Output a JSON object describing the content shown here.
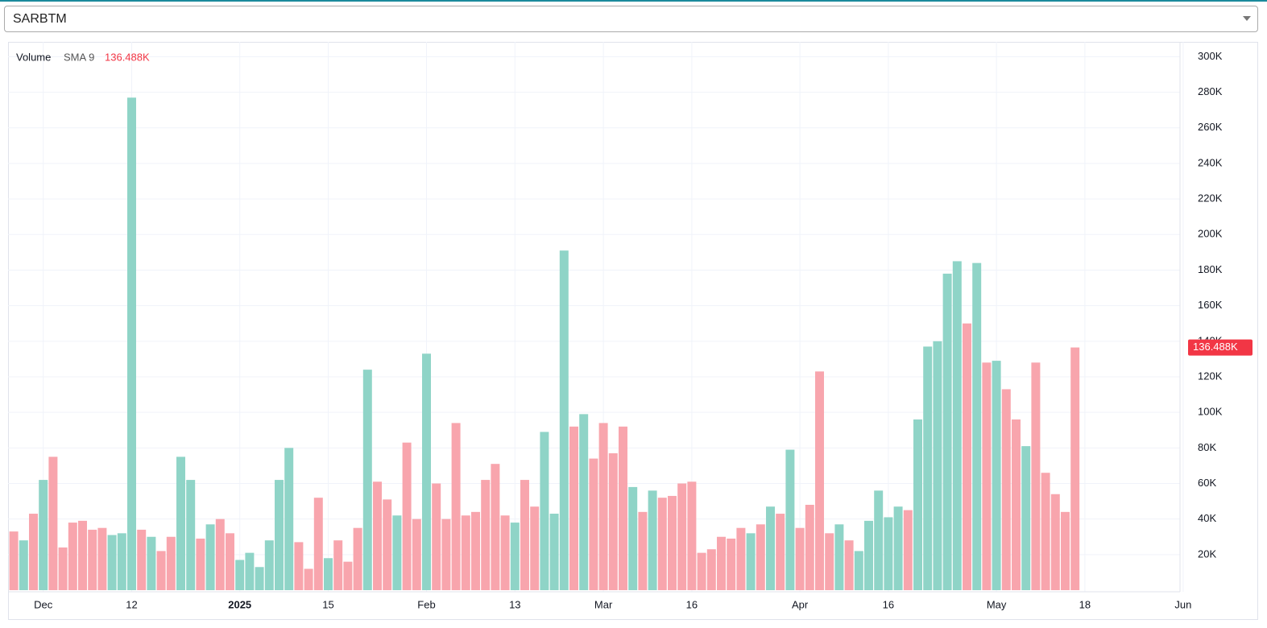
{
  "dropdown": {
    "value": "SARBTM"
  },
  "chart_data": {
    "type": "bar",
    "legend": {
      "name": "Volume",
      "indicator": "SMA 9",
      "value_label": "136.488K"
    },
    "categories": [
      null,
      null,
      null,
      "Dec",
      null,
      null,
      null,
      null,
      null,
      null,
      null,
      null,
      "12",
      null,
      null,
      null,
      null,
      null,
      null,
      null,
      null,
      null,
      null,
      "2025",
      null,
      null,
      null,
      null,
      null,
      null,
      null,
      null,
      "15",
      null,
      null,
      null,
      null,
      null,
      null,
      null,
      null,
      null,
      "Feb",
      null,
      null,
      null,
      null,
      null,
      null,
      null,
      null,
      "13",
      null,
      null,
      null,
      null,
      null,
      null,
      null,
      null,
      "Mar",
      null,
      null,
      null,
      null,
      null,
      null,
      null,
      null,
      "16",
      null,
      null,
      null,
      null,
      null,
      null,
      null,
      null,
      null,
      null,
      "Apr",
      null,
      null,
      null,
      null,
      null,
      null,
      null,
      null,
      "16",
      null,
      null,
      null,
      null,
      null,
      null,
      null,
      null,
      null,
      null,
      "May",
      null,
      null,
      null,
      null,
      null,
      null,
      null,
      null,
      "18",
      null,
      null,
      null,
      null,
      null,
      null,
      null,
      null,
      null,
      "Jun"
    ],
    "values": [
      33000,
      28000,
      43000,
      62000,
      75000,
      24000,
      38000,
      39000,
      34000,
      35000,
      31000,
      32000,
      277000,
      34000,
      30000,
      22000,
      30000,
      75000,
      62000,
      29000,
      37000,
      40000,
      32000,
      17000,
      21000,
      13000,
      28000,
      62000,
      80000,
      27000,
      12000,
      52000,
      18000,
      28000,
      16000,
      35000,
      124000,
      61000,
      51000,
      42000,
      83000,
      40000,
      133000,
      60000,
      40000,
      94000,
      42000,
      44000,
      62000,
      71000,
      42000,
      38000,
      62000,
      47000,
      89000,
      43000,
      191000,
      92000,
      99000,
      74000,
      94000,
      77000,
      92000,
      58000,
      44000,
      56000,
      52000,
      53000,
      60000,
      61000,
      21000,
      23000,
      30000,
      29000,
      35000,
      32000,
      37000,
      47000,
      43000,
      79000,
      35000,
      48000,
      123000,
      32000,
      37000,
      28000,
      22000,
      39000,
      56000,
      41000,
      47000,
      45000,
      96000,
      137000,
      140000,
      178000,
      185000,
      150000,
      184000,
      128000,
      129000,
      113000,
      96000,
      81000,
      128000,
      66000,
      54000,
      44000,
      136488,
      null,
      null,
      null,
      null,
      null,
      null,
      null,
      null,
      null,
      null,
      null
    ],
    "colors": [
      "#f8a5ad",
      "#8fd4c7",
      "#f8a5ad",
      "#8fd4c7",
      "#f8a5ad",
      "#f8a5ad",
      "#f8a5ad",
      "#f8a5ad",
      "#f8a5ad",
      "#f8a5ad",
      "#8fd4c7",
      "#8fd4c7",
      "#8fd4c7",
      "#f8a5ad",
      "#8fd4c7",
      "#f8a5ad",
      "#f8a5ad",
      "#8fd4c7",
      "#8fd4c7",
      "#f8a5ad",
      "#8fd4c7",
      "#f8a5ad",
      "#f8a5ad",
      "#8fd4c7",
      "#8fd4c7",
      "#8fd4c7",
      "#8fd4c7",
      "#8fd4c7",
      "#8fd4c7",
      "#f8a5ad",
      "#f8a5ad",
      "#f8a5ad",
      "#8fd4c7",
      "#f8a5ad",
      "#f8a5ad",
      "#f8a5ad",
      "#8fd4c7",
      "#f8a5ad",
      "#f8a5ad",
      "#8fd4c7",
      "#f8a5ad",
      "#f8a5ad",
      "#8fd4c7",
      "#f8a5ad",
      "#f8a5ad",
      "#f8a5ad",
      "#f8a5ad",
      "#f8a5ad",
      "#f8a5ad",
      "#f8a5ad",
      "#f8a5ad",
      "#8fd4c7",
      "#f8a5ad",
      "#f8a5ad",
      "#8fd4c7",
      "#8fd4c7",
      "#8fd4c7",
      "#f8a5ad",
      "#8fd4c7",
      "#f8a5ad",
      "#f8a5ad",
      "#f8a5ad",
      "#f8a5ad",
      "#8fd4c7",
      "#f8a5ad",
      "#8fd4c7",
      "#f8a5ad",
      "#f8a5ad",
      "#f8a5ad",
      "#f8a5ad",
      "#f8a5ad",
      "#f8a5ad",
      "#f8a5ad",
      "#f8a5ad",
      "#f8a5ad",
      "#8fd4c7",
      "#f8a5ad",
      "#8fd4c7",
      "#f8a5ad",
      "#8fd4c7",
      "#f8a5ad",
      "#f8a5ad",
      "#f8a5ad",
      "#f8a5ad",
      "#8fd4c7",
      "#f8a5ad",
      "#8fd4c7",
      "#8fd4c7",
      "#8fd4c7",
      "#8fd4c7",
      "#8fd4c7",
      "#f8a5ad",
      "#8fd4c7",
      "#8fd4c7",
      "#8fd4c7",
      "#8fd4c7",
      "#8fd4c7",
      "#f8a5ad",
      "#8fd4c7",
      "#f8a5ad",
      "#8fd4c7",
      "#f8a5ad",
      "#f8a5ad",
      "#8fd4c7",
      "#f8a5ad",
      "#f8a5ad",
      "#f8a5ad",
      "#f8a5ad",
      "#f8a5ad",
      null,
      null,
      null,
      null,
      null,
      null,
      null,
      null,
      null,
      null,
      null
    ],
    "last_color": "#f23645",
    "ylim": [
      0,
      307000
    ],
    "yticks": [
      {
        "value": 20000,
        "label": "20K"
      },
      {
        "value": 40000,
        "label": "40K"
      },
      {
        "value": 60000,
        "label": "60K"
      },
      {
        "value": 80000,
        "label": "80K"
      },
      {
        "value": 100000,
        "label": "100K"
      },
      {
        "value": 120000,
        "label": "120K"
      },
      {
        "value": 140000,
        "label": "140K"
      },
      {
        "value": 160000,
        "label": "160K"
      },
      {
        "value": 180000,
        "label": "180K"
      },
      {
        "value": 200000,
        "label": "200K"
      },
      {
        "value": 220000,
        "label": "220K"
      },
      {
        "value": 240000,
        "label": "240K"
      },
      {
        "value": 260000,
        "label": "260K"
      },
      {
        "value": 280000,
        "label": "280K"
      },
      {
        "value": 300000,
        "label": "300K"
      }
    ],
    "grid": true
  }
}
